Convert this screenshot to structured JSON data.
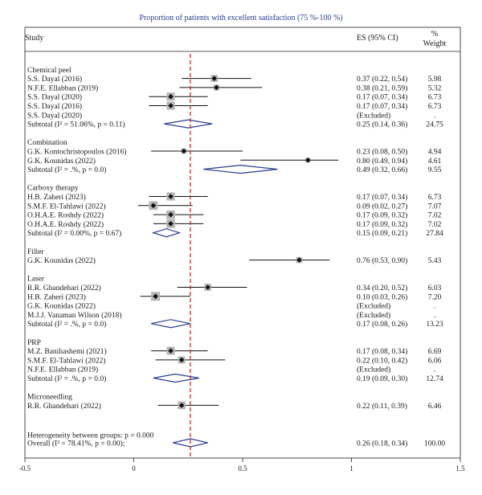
{
  "chart_data": {
    "type": "forest",
    "title": "Proportion of patients with excellent satisfaction (75 %-100 %)",
    "headers": {
      "study": "Study",
      "es": "ES (95% CI)",
      "weight_line1": "%",
      "weight_line2": "Weight"
    },
    "xlim": [
      -0.5,
      1.5
    ],
    "xticks": [
      "-0.5",
      "0",
      "0.5",
      "1",
      "1.5"
    ],
    "xtick_values": [
      -0.5,
      0,
      0.5,
      1,
      1.5
    ],
    "reference_line": 0.26,
    "groups": [
      {
        "name": "Chemical peel",
        "studies": [
          {
            "label": "S.S. Dayal (2016)",
            "es": 0.37,
            "lo": 0.22,
            "hi": 0.54,
            "ci_text": "0.37 (0.22, 0.54)",
            "weight": "5.98",
            "w": 5.98
          },
          {
            "label": "N.F.E. Ellabban (2019)",
            "es": 0.38,
            "lo": 0.21,
            "hi": 0.59,
            "ci_text": "0.38 (0.21, 0.59)",
            "weight": "5.32",
            "w": 5.32
          },
          {
            "label": "S.S. Dayal (2020)",
            "es": 0.17,
            "lo": 0.07,
            "hi": 0.34,
            "ci_text": "0.17 (0.07, 0.34)",
            "weight": "6.73",
            "w": 6.73
          },
          {
            "label": "S.S. Dayal (2016)",
            "es": 0.17,
            "lo": 0.07,
            "hi": 0.34,
            "ci_text": "0.17 (0.07, 0.34)",
            "weight": "6.73",
            "w": 6.73
          },
          {
            "label": "S.S. Dayal (2020)",
            "es": null,
            "lo": null,
            "hi": null,
            "ci_text": "(Excluded)",
            "weight": ".",
            "w": 0
          }
        ],
        "subtotal": {
          "label": "Subtotal (I² = 51.06%, p = 0.11)",
          "es": 0.25,
          "lo": 0.14,
          "hi": 0.36,
          "ci_text": "0.25 (0.14, 0.36)",
          "weight": "24.75"
        }
      },
      {
        "name": "Combination",
        "studies": [
          {
            "label": "G.K. Kontochristopoulos (2016)",
            "es": 0.23,
            "lo": 0.08,
            "hi": 0.5,
            "ci_text": "0.23 (0.08, 0.50)",
            "weight": "4.94",
            "w": 4.94
          },
          {
            "label": "G.K. Kounidas (2022)",
            "es": 0.8,
            "lo": 0.49,
            "hi": 0.94,
            "ci_text": "0.80 (0.49, 0.94)",
            "weight": "4.61",
            "w": 4.61
          }
        ],
        "subtotal": {
          "label": "Subtotal (I² = .%, p = 0.0)",
          "es": 0.49,
          "lo": 0.32,
          "hi": 0.66,
          "ci_text": "0.49 (0.32, 0.66)",
          "weight": "9.55"
        }
      },
      {
        "name": "Carboxy therapy",
        "studies": [
          {
            "label": "H.B. Zaheri (2023)",
            "es": 0.17,
            "lo": 0.07,
            "hi": 0.34,
            "ci_text": "0.17 (0.07, 0.34)",
            "weight": "6.73",
            "w": 6.73
          },
          {
            "label": "S.M.F. El-Tahlawi (2022)",
            "es": 0.09,
            "lo": 0.02,
            "hi": 0.27,
            "ci_text": "0.09 (0.02, 0.27)",
            "weight": "7.07",
            "w": 7.07
          },
          {
            "label": "O.H.A.E. Roshdy (2022)",
            "es": 0.17,
            "lo": 0.09,
            "hi": 0.32,
            "ci_text": "0.17 (0.09, 0.32)",
            "weight": "7.02",
            "w": 7.02
          },
          {
            "label": "O.H.A.E. Roshdy (2022)",
            "es": 0.17,
            "lo": 0.09,
            "hi": 0.32,
            "ci_text": "0.17 (0.09, 0.32)",
            "weight": "7.02",
            "w": 7.02
          }
        ],
        "subtotal": {
          "label": "Subtotal (I² = 0.00%, p = 0.67)",
          "es": 0.15,
          "lo": 0.09,
          "hi": 0.21,
          "ci_text": "0.15 (0.09, 0.21)",
          "weight": "27.84"
        }
      },
      {
        "name": "Filler",
        "studies": [
          {
            "label": "G.K. Kounidas (2022)",
            "es": 0.76,
            "lo": 0.53,
            "hi": 0.9,
            "ci_text": "0.76 (0.53, 0.90)",
            "weight": "5.43",
            "w": 5.43
          }
        ],
        "subtotal": null
      },
      {
        "name": "Laser",
        "studies": [
          {
            "label": "R.R. Ghandehari (2022)",
            "es": 0.34,
            "lo": 0.2,
            "hi": 0.52,
            "ci_text": "0.34 (0.20, 0.52)",
            "weight": "6.03",
            "w": 6.03
          },
          {
            "label": "H.B. Zaheri (2023)",
            "es": 0.1,
            "lo": 0.03,
            "hi": 0.26,
            "ci_text": "0.10 (0.03, 0.26)",
            "weight": "7.20",
            "w": 7.2
          },
          {
            "label": "G.K. Kounidas (2022)",
            "es": null,
            "lo": null,
            "hi": null,
            "ci_text": "(Excluded)",
            "weight": ".",
            "w": 0
          },
          {
            "label": "M.J.J. Vanaman Wilson (2018)",
            "es": null,
            "lo": null,
            "hi": null,
            "ci_text": "(Excluded)",
            "weight": ".",
            "w": 0
          }
        ],
        "subtotal": {
          "label": "Subtotal (I² = .%, p = 0.0)",
          "es": 0.17,
          "lo": 0.08,
          "hi": 0.26,
          "ci_text": "0.17 (0.08, 0.26)",
          "weight": "13.23"
        }
      },
      {
        "name": "PRP",
        "studies": [
          {
            "label": "M.Z. Banihashemi (2021)",
            "es": 0.17,
            "lo": 0.08,
            "hi": 0.34,
            "ci_text": "0.17 (0.08, 0.34)",
            "weight": "6.69",
            "w": 6.69
          },
          {
            "label": "S.M.F. El-Tahlawi (2022)",
            "es": 0.22,
            "lo": 0.1,
            "hi": 0.42,
            "ci_text": "0.22 (0.10, 0.42)",
            "weight": "6.06",
            "w": 6.06
          },
          {
            "label": "N.F.E. Ellabban (2019)",
            "es": null,
            "lo": null,
            "hi": null,
            "ci_text": "(Excluded)",
            "weight": ".",
            "w": 0
          }
        ],
        "subtotal": {
          "label": "Subtotal (I² = .%, p = 0.0)",
          "es": 0.19,
          "lo": 0.09,
          "hi": 0.3,
          "ci_text": "0.19 (0.09, 0.30)",
          "weight": "12.74"
        }
      },
      {
        "name": "Microneedling",
        "studies": [
          {
            "label": "R.R. Ghandehari (2022)",
            "es": 0.22,
            "lo": 0.11,
            "hi": 0.39,
            "ci_text": "0.22 (0.11, 0.39)",
            "weight": "6.46",
            "w": 6.46
          }
        ],
        "subtotal": null
      }
    ],
    "heterogeneity": "Heterogeneity between groups: p = 0.000",
    "overall": {
      "label": "Overall (I² = 78.41%, p = 0.00);",
      "es": 0.26,
      "lo": 0.18,
      "hi": 0.34,
      "ci_text": "0.26 (0.18, 0.34)",
      "weight": "100.00"
    },
    "colors": {
      "title": "#2b3d8f",
      "diamond": "#2b3d8f",
      "reference": "#a83232",
      "box": "#b5b5b5",
      "point": "#111111"
    }
  }
}
